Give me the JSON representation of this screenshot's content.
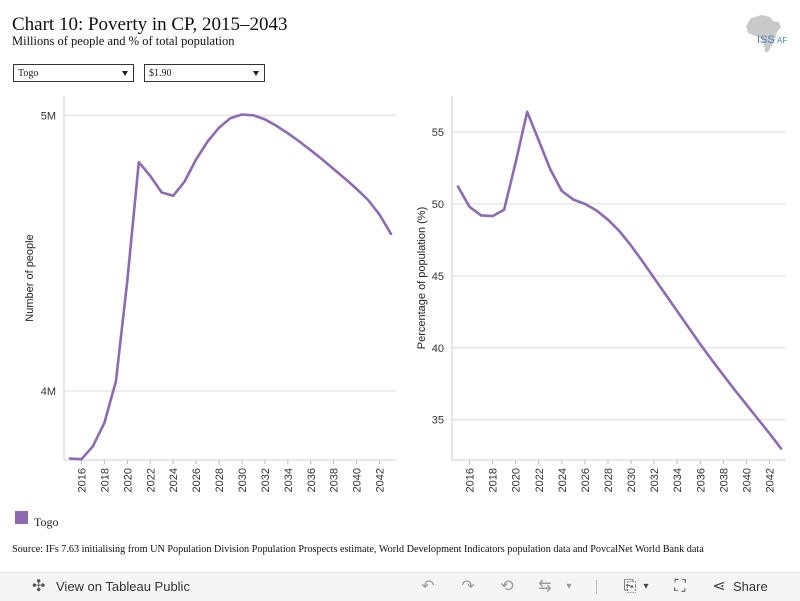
{
  "header": {
    "title": "Chart 10: Poverty in CP, 2015–2043",
    "subtitle": "Millions of people and % of total population",
    "logo_text": "ISS",
    "logo_suffix": "AF"
  },
  "filters": {
    "country": "Togo",
    "poverty_line": "$1.90"
  },
  "legend": {
    "label": "Togo",
    "color": "#8c6bb1"
  },
  "source": "Source: IFs 7.63 initialising from UN Population Division Population Prospects estimate, World Development Indicators population data and PovcalNet World Bank data",
  "toolbar": {
    "view_label": "View on Tableau Public",
    "share_label": "Share"
  },
  "chart_data": [
    {
      "type": "line",
      "ylabel": "Number of people",
      "yticks": [
        4000000,
        5000000
      ],
      "ytick_labels": [
        "4M",
        "5M"
      ],
      "ylim": [
        3750000,
        5070000
      ],
      "x_tick_labels": [
        "2016",
        "2018",
        "2020",
        "2022",
        "2024",
        "2026",
        "2028",
        "2030",
        "2032",
        "2034",
        "2036",
        "2038",
        "2040",
        "2042"
      ],
      "x": [
        2015,
        2016,
        2017,
        2018,
        2019,
        2020,
        2021,
        2022,
        2023,
        2024,
        2025,
        2026,
        2027,
        2028,
        2029,
        2030,
        2031,
        2032,
        2033,
        2034,
        2035,
        2036,
        2037,
        2038,
        2039,
        2040,
        2041,
        2042,
        2043
      ],
      "series": [
        {
          "name": "Togo",
          "color": "#8c6bb1",
          "values": [
            3755000,
            3753000,
            3800000,
            3885000,
            4035000,
            4400000,
            4830000,
            4780000,
            4720000,
            4708000,
            4760000,
            4840000,
            4905000,
            4955000,
            4990000,
            5003000,
            5000000,
            4985000,
            4962000,
            4935000,
            4905000,
            4873000,
            4840000,
            4805000,
            4770000,
            4733000,
            4693000,
            4640000,
            4570000
          ]
        }
      ],
      "grid": true
    },
    {
      "type": "line",
      "ylabel": "Percentage of population (%)",
      "yticks": [
        35,
        40,
        45,
        50,
        55
      ],
      "ylim": [
        32.2,
        57.5
      ],
      "x_tick_labels": [
        "2016",
        "2018",
        "2020",
        "2022",
        "2024",
        "2026",
        "2028",
        "2030",
        "2032",
        "2034",
        "2036",
        "2038",
        "2040",
        "2042"
      ],
      "x": [
        2015,
        2016,
        2017,
        2018,
        2019,
        2020,
        2021,
        2022,
        2023,
        2024,
        2025,
        2026,
        2027,
        2028,
        2029,
        2030,
        2031,
        2032,
        2033,
        2034,
        2035,
        2036,
        2037,
        2038,
        2039,
        2040,
        2041,
        2042,
        2043
      ],
      "series": [
        {
          "name": "Togo",
          "color": "#8c6bb1",
          "values": [
            51.2,
            49.8,
            49.2,
            49.15,
            49.6,
            52.9,
            56.4,
            54.4,
            52.4,
            50.9,
            50.3,
            50.0,
            49.55,
            48.9,
            48.1,
            47.1,
            46.0,
            44.85,
            43.7,
            42.55,
            41.4,
            40.25,
            39.15,
            38.1,
            37.05,
            36.05,
            35.05,
            34.05,
            33.0
          ]
        }
      ],
      "grid": true
    }
  ]
}
